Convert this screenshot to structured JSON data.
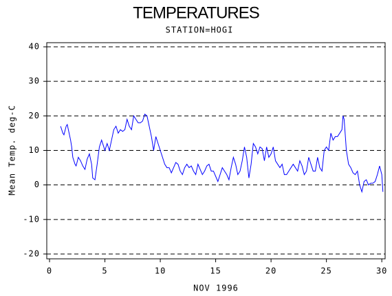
{
  "chart_data": {
    "type": "line",
    "title": "TEMPERATURES",
    "subtitle": "STATION=HOGI",
    "x_label": "NOV 1996",
    "y_label": "Mean Temp. deg-C",
    "xlim": [
      -0.25,
      30.3
    ],
    "ylim": [
      -21.4,
      41.2
    ],
    "xticks": [
      0,
      5,
      10,
      15,
      20,
      25,
      30
    ],
    "yticks": [
      -20,
      -10,
      0,
      10,
      20,
      30,
      40
    ],
    "grid": true,
    "series": [
      {
        "color": "#0000ff",
        "x": [
          1.0,
          1.2,
          1.3,
          1.5,
          1.6,
          1.7,
          1.9,
          2.0,
          2.1,
          2.3,
          2.4,
          2.6,
          2.8,
          3.0,
          3.2,
          3.4,
          3.6,
          3.8,
          3.9,
          4.1,
          4.3,
          4.5,
          4.7,
          4.9,
          5.0,
          5.2,
          5.4,
          5.6,
          5.8,
          6.0,
          6.2,
          6.4,
          6.6,
          6.8,
          7.0,
          7.2,
          7.4,
          7.6,
          7.8,
          8.0,
          8.2,
          8.4,
          8.6,
          8.8,
          9.0,
          9.2,
          9.4,
          9.6,
          9.8,
          10.0,
          10.2,
          10.4,
          10.6,
          10.8,
          11.0,
          11.2,
          11.4,
          11.6,
          11.8,
          12.0,
          12.2,
          12.4,
          12.6,
          12.8,
          13.0,
          13.2,
          13.4,
          13.6,
          13.8,
          14.0,
          14.2,
          14.4,
          14.6,
          14.8,
          15.0,
          15.2,
          15.4,
          15.6,
          15.8,
          16.0,
          16.2,
          16.4,
          16.6,
          16.8,
          17.0,
          17.2,
          17.4,
          17.6,
          17.8,
          18.0,
          18.2,
          18.4,
          18.6,
          18.8,
          19.0,
          19.2,
          19.4,
          19.6,
          19.8,
          20.0,
          20.2,
          20.4,
          20.6,
          20.8,
          21.0,
          21.2,
          21.4,
          21.6,
          21.8,
          22.0,
          22.2,
          22.4,
          22.6,
          22.8,
          23.0,
          23.2,
          23.4,
          23.6,
          23.8,
          24.0,
          24.2,
          24.4,
          24.6,
          24.8,
          25.0,
          25.2,
          25.4,
          25.6,
          25.8,
          26.0,
          26.2,
          26.4,
          26.5,
          26.6,
          26.8,
          27.0,
          27.2,
          27.4,
          27.6,
          27.8,
          28.0,
          28.2,
          28.4,
          28.6,
          28.8,
          29.0,
          29.2,
          29.4,
          29.6,
          29.8,
          30.0,
          30.1
        ],
        "values": [
          17,
          15,
          14.5,
          17,
          17.5,
          16,
          13,
          11,
          8,
          6,
          5.5,
          8,
          7,
          5.5,
          4.5,
          7.5,
          9,
          6,
          2,
          1.5,
          6,
          11,
          13,
          11,
          10,
          12,
          10,
          13,
          16,
          17,
          15,
          16,
          15.5,
          16,
          19,
          17,
          16,
          20,
          19,
          18,
          18,
          18.5,
          20.5,
          20,
          17,
          14,
          10,
          14,
          12,
          10,
          8,
          6,
          5,
          5,
          3.5,
          5,
          6.5,
          6,
          4,
          3,
          5,
          6,
          5,
          5.5,
          4,
          3,
          6,
          4.5,
          3,
          4,
          5.5,
          6,
          4,
          4,
          2.5,
          1,
          3,
          5,
          4,
          3,
          1.5,
          5,
          8,
          6,
          3,
          4,
          7,
          11,
          8,
          2,
          6,
          12,
          11,
          9,
          11,
          10.5,
          7,
          11,
          8,
          9,
          11,
          7,
          6,
          5,
          6,
          3,
          3,
          4,
          5,
          6,
          5,
          4,
          7,
          5.5,
          3,
          4,
          8,
          6,
          4,
          4,
          8,
          5,
          4,
          10,
          11,
          10,
          15,
          13,
          14,
          14,
          15,
          16,
          20,
          19,
          10,
          6,
          5,
          3.5,
          3,
          4,
          0,
          -2,
          1,
          1.5,
          0,
          0.5,
          0.5,
          1,
          3,
          5.5,
          3,
          -2
        ]
      }
    ]
  }
}
